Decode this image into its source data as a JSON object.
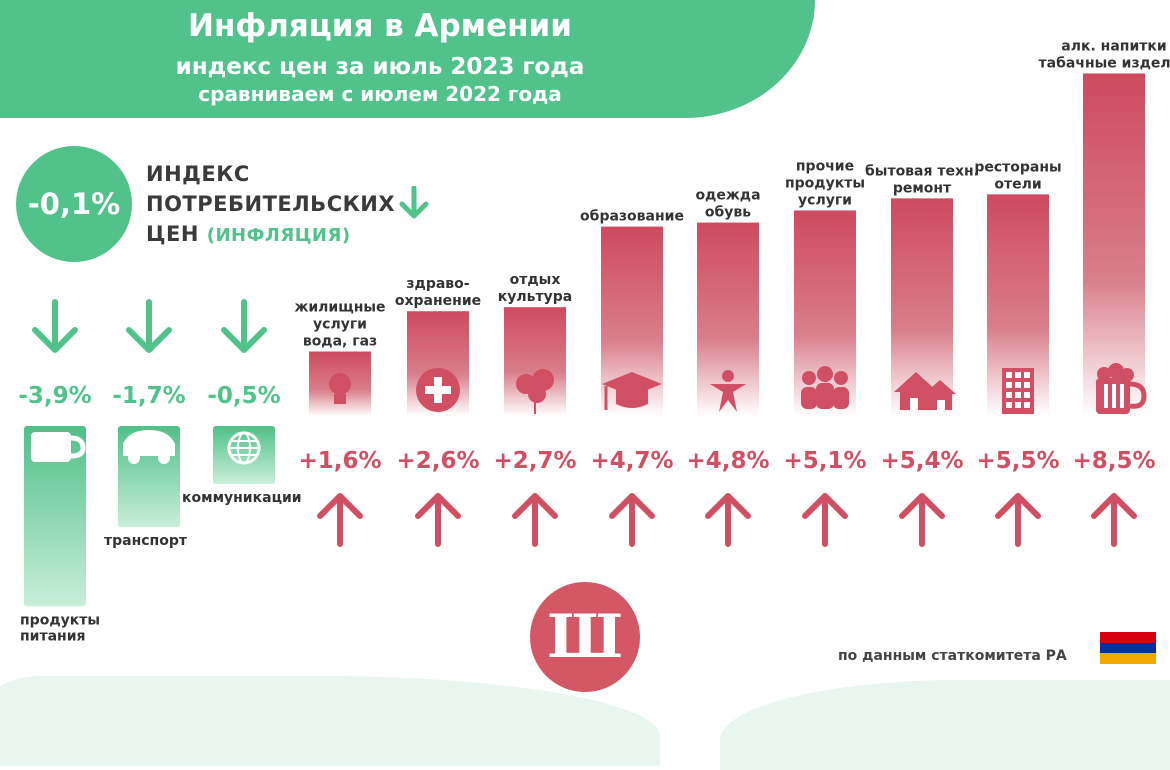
{
  "header": {
    "title": "Инфляция в Армении",
    "subtitle": "индекс цен за июль 2023 года",
    "subtitle2": "сравниваем с июлем 2022 года"
  },
  "cpi": {
    "value_label": "-0,1%",
    "label_line1": "ИНДЕКС",
    "label_line2": "ПОТРЕБИТЕЛЬСКИХ",
    "label_line3": "ЦЕН",
    "label_note": "(ИНФЛЯЦИЯ)"
  },
  "source": "по данным статкомитета РА",
  "logo_text": "Ш",
  "colors": {
    "down": "#52c28b",
    "up": "#d14f62",
    "header": "#52c28b"
  },
  "chart_data": {
    "type": "bar",
    "unit": "%",
    "series": [
      {
        "category": [
          "продукты",
          "питания"
        ],
        "value": -3.9,
        "label": "-3,9%",
        "icon": "mug-icon"
      },
      {
        "category": [
          "транспорт"
        ],
        "value": -1.7,
        "label": "-1,7%",
        "icon": "car-icon"
      },
      {
        "category": [
          "коммуникации"
        ],
        "value": -0.5,
        "label": "-0,5%",
        "icon": "globe-icon"
      },
      {
        "category": [
          "жилищные",
          "услуги",
          "вода, газ"
        ],
        "value": 1.6,
        "label": "+1,6%",
        "icon": "lightbulb-icon"
      },
      {
        "category": [
          "здраво-",
          "охранение"
        ],
        "value": 2.6,
        "label": "+2,6%",
        "icon": "medical-cross-icon"
      },
      {
        "category": [
          "отдых",
          "культура"
        ],
        "value": 2.7,
        "label": "+2,7%",
        "icon": "balloons-icon"
      },
      {
        "category": [
          "образование"
        ],
        "value": 4.7,
        "label": "+4,7%",
        "icon": "graduation-cap-icon"
      },
      {
        "category": [
          "одежда",
          "обувь"
        ],
        "value": 4.8,
        "label": "+4,8%",
        "icon": "person-icon"
      },
      {
        "category": [
          "прочие",
          "продукты",
          "услуги"
        ],
        "value": 5.1,
        "label": "+5,1%",
        "icon": "people-icon"
      },
      {
        "category": [
          "бытовая техн.",
          "ремонт"
        ],
        "value": 5.4,
        "label": "+5,4%",
        "icon": "houses-icon"
      },
      {
        "category": [
          "рестораны",
          "отели"
        ],
        "value": 5.5,
        "label": "+5,5%",
        "icon": "building-icon"
      },
      {
        "category": [
          "алк. напитки",
          "табачные изделия"
        ],
        "value": 8.5,
        "label": "+8,5%",
        "icon": "beer-mug-icon"
      }
    ]
  }
}
